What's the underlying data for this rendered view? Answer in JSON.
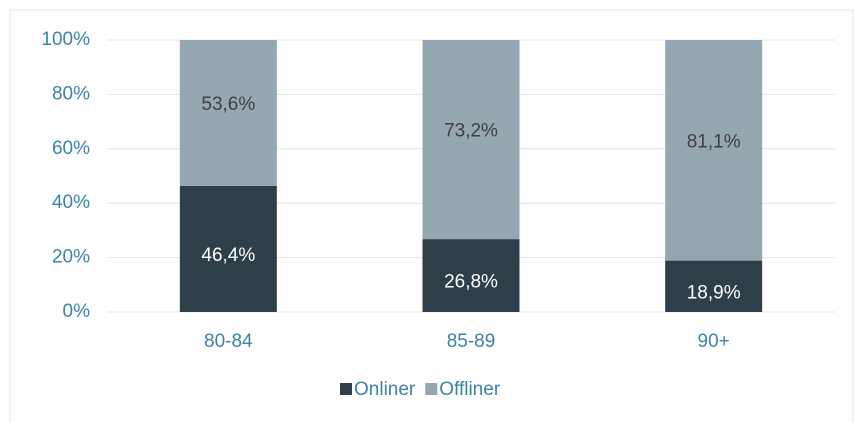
{
  "chart_data": {
    "type": "stacked_bar",
    "categories": [
      "80-84",
      "85-89",
      "90+"
    ],
    "series": [
      {
        "name": "Onliner",
        "color": "#2e3f4a",
        "values": [
          46.4,
          26.8,
          18.9
        ],
        "value_labels": [
          "46,4%",
          "26,8%",
          "18,9%"
        ]
      },
      {
        "name": "Offliner",
        "color": "#95a7b1",
        "values": [
          53.6,
          73.2,
          81.1
        ],
        "value_labels": [
          "53,6%",
          "73,2%",
          "81,1%"
        ]
      }
    ],
    "ylim": [
      0,
      100
    ],
    "yticks": [
      {
        "value": 0,
        "label": "0%"
      },
      {
        "value": 20,
        "label": "20%"
      },
      {
        "value": 40,
        "label": "40%"
      },
      {
        "value": 60,
        "label": "60%"
      },
      {
        "value": 80,
        "label": "80%"
      },
      {
        "value": 100,
        "label": "100%"
      }
    ],
    "grid": true,
    "legend": "bottom"
  }
}
